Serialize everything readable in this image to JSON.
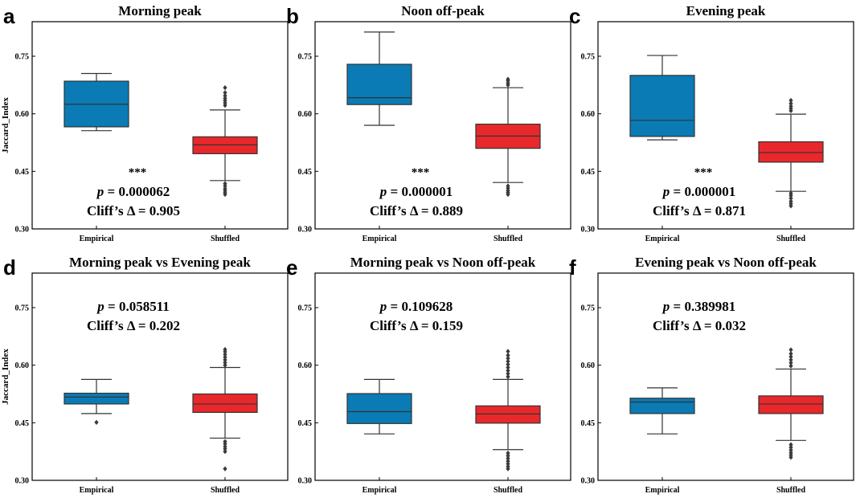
{
  "chart_data": [
    {
      "type": "box",
      "panel": "a",
      "title": "Morning peak",
      "ylabel": "Jaccard_Index",
      "ylim": [
        0.3,
        0.84
      ],
      "yticks": [
        "0.30",
        "0.45",
        "0.60",
        "0.75"
      ],
      "categories": [
        "Empirical",
        "Shuffled"
      ],
      "boxes": [
        {
          "name": "Empirical",
          "color": "#0a7bb5",
          "q1": 0.566,
          "median": 0.625,
          "q3": 0.685,
          "whisker_low": 0.556,
          "whisker_high": 0.705,
          "outliers": []
        },
        {
          "name": "Shuffled",
          "color": "#e8282b",
          "q1": 0.496,
          "median": 0.519,
          "q3": 0.54,
          "whisker_low": 0.426,
          "whisker_high": 0.61,
          "outliers": [
            0.39,
            0.395,
            0.4,
            0.405,
            0.412,
            0.418,
            0.622,
            0.628,
            0.634,
            0.64,
            0.647,
            0.655,
            0.668
          ]
        }
      ],
      "significance": "***",
      "p_value": "0.000062",
      "cliffs_label": "Cliff’s Δ = 0.905"
    },
    {
      "type": "box",
      "panel": "b",
      "title": "Noon off-peak",
      "ylabel": "",
      "ylim": [
        0.3,
        0.84
      ],
      "yticks": [
        "0.30",
        "0.45",
        "0.60",
        "0.75"
      ],
      "categories": [
        "Empirical",
        "Shuffled"
      ],
      "boxes": [
        {
          "name": "Empirical",
          "color": "#0a7bb5",
          "q1": 0.624,
          "median": 0.642,
          "q3": 0.729,
          "whisker_low": 0.57,
          "whisker_high": 0.813,
          "outliers": []
        },
        {
          "name": "Shuffled",
          "color": "#e8282b",
          "q1": 0.51,
          "median": 0.542,
          "q3": 0.573,
          "whisker_low": 0.421,
          "whisker_high": 0.668,
          "outliers": [
            0.39,
            0.395,
            0.4,
            0.406,
            0.412,
            0.675,
            0.68,
            0.686,
            0.69
          ]
        }
      ],
      "significance": "***",
      "p_value": "0.000001",
      "cliffs_label": "Cliff’s Δ = 0.889"
    },
    {
      "type": "box",
      "panel": "c",
      "title": "Evening peak",
      "ylabel": "",
      "ylim": [
        0.3,
        0.84
      ],
      "yticks": [
        "0.30",
        "0.45",
        "0.60",
        "0.75"
      ],
      "categories": [
        "Empirical",
        "Shuffled"
      ],
      "boxes": [
        {
          "name": "Empirical",
          "color": "#0a7bb5",
          "q1": 0.541,
          "median": 0.583,
          "q3": 0.7,
          "whisker_low": 0.532,
          "whisker_high": 0.752,
          "outliers": []
        },
        {
          "name": "Shuffled",
          "color": "#e8282b",
          "q1": 0.474,
          "median": 0.499,
          "q3": 0.527,
          "whisker_low": 0.398,
          "whisker_high": 0.599,
          "outliers": [
            0.36,
            0.366,
            0.372,
            0.38,
            0.387,
            0.393,
            0.608,
            0.614,
            0.62,
            0.627,
            0.635
          ]
        }
      ],
      "significance": "***",
      "p_value": "0.000001",
      "cliffs_label": "Cliff’s Δ = 0.871"
    },
    {
      "type": "box",
      "panel": "d",
      "title": "Morning peak vs Evening peak",
      "ylabel": "Jaccard_Index",
      "ylim": [
        0.3,
        0.84
      ],
      "yticks": [
        "0.30",
        "0.45",
        "0.60",
        "0.75"
      ],
      "categories": [
        "Empirical",
        "Shuffled"
      ],
      "boxes": [
        {
          "name": "Empirical",
          "color": "#0a7bb5",
          "q1": 0.499,
          "median": 0.517,
          "q3": 0.527,
          "whisker_low": 0.474,
          "whisker_high": 0.563,
          "outliers": [
            0.451
          ]
        },
        {
          "name": "Shuffled",
          "color": "#e8282b",
          "q1": 0.477,
          "median": 0.499,
          "q3": 0.525,
          "whisker_low": 0.41,
          "whisker_high": 0.594,
          "outliers": [
            0.33,
            0.375,
            0.382,
            0.388,
            0.395,
            0.401,
            0.6,
            0.607,
            0.614,
            0.621,
            0.628,
            0.635,
            0.641
          ]
        }
      ],
      "significance": "",
      "p_value": "0.058511",
      "cliffs_label": "Cliff’s Δ = 0.202"
    },
    {
      "type": "box",
      "panel": "e",
      "title": "Morning peak vs Noon off-peak",
      "ylabel": "",
      "ylim": [
        0.3,
        0.84
      ],
      "yticks": [
        "0.30",
        "0.45",
        "0.60",
        "0.75"
      ],
      "categories": [
        "Empirical",
        "Shuffled"
      ],
      "boxes": [
        {
          "name": "Empirical",
          "color": "#0a7bb5",
          "q1": 0.448,
          "median": 0.479,
          "q3": 0.526,
          "whisker_low": 0.421,
          "whisker_high": 0.563,
          "outliers": []
        },
        {
          "name": "Shuffled",
          "color": "#e8282b",
          "q1": 0.449,
          "median": 0.473,
          "q3": 0.494,
          "whisker_low": 0.38,
          "whisker_high": 0.563,
          "outliers": [
            0.33,
            0.336,
            0.343,
            0.35,
            0.357,
            0.364,
            0.371,
            0.57,
            0.578,
            0.586,
            0.594,
            0.602,
            0.61,
            0.618,
            0.626,
            0.636
          ]
        }
      ],
      "significance": "",
      "p_value": "0.109628",
      "cliffs_label": "Cliff’s Δ = 0.159"
    },
    {
      "type": "box",
      "panel": "f",
      "title": "Evening peak vs Noon off-peak",
      "ylabel": "",
      "ylim": [
        0.3,
        0.84
      ],
      "yticks": [
        "0.30",
        "0.45",
        "0.60",
        "0.75"
      ],
      "categories": [
        "Empirical",
        "Shuffled"
      ],
      "boxes": [
        {
          "name": "Empirical",
          "color": "#0a7bb5",
          "q1": 0.474,
          "median": 0.504,
          "q3": 0.514,
          "whisker_low": 0.421,
          "whisker_high": 0.541,
          "outliers": []
        },
        {
          "name": "Shuffled",
          "color": "#e8282b",
          "q1": 0.474,
          "median": 0.499,
          "q3": 0.52,
          "whisker_low": 0.404,
          "whisker_high": 0.59,
          "outliers": [
            0.36,
            0.366,
            0.372,
            0.379,
            0.386,
            0.393,
            0.598,
            0.606,
            0.614,
            0.622,
            0.63,
            0.64
          ]
        }
      ],
      "significance": "",
      "p_value": "0.389981",
      "cliffs_label": "Cliff’s Δ = 0.032"
    }
  ]
}
